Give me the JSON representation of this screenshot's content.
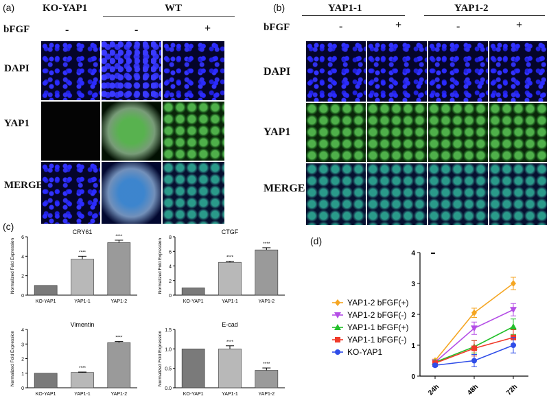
{
  "panel_a": {
    "label": "(a)",
    "col_headers": {
      "ko": "KO-YAP1",
      "wt": "WT"
    },
    "bfgf_label": "bFGF",
    "bfgf_values": [
      "-",
      "-",
      "+"
    ],
    "row_labels": [
      "DAPI",
      "YAP1",
      "MERGE"
    ]
  },
  "panel_b": {
    "label": "(b)",
    "col_headers": [
      "YAP1-1",
      "YAP1-2"
    ],
    "bfgf_label": "bFGF",
    "bfgf_values": [
      "-",
      "+",
      "-",
      "+"
    ],
    "row_labels": [
      "DAPI",
      "YAP1",
      "MERGE"
    ]
  },
  "panel_c": {
    "label": "(c)"
  },
  "panel_d": {
    "label": "(d)"
  },
  "chart_data": [
    {
      "type": "bar",
      "title": "CRY61",
      "ylabel": "Normalized Fold  Expression",
      "categories": [
        "KO-YAP1",
        "YAP1-1",
        "YAP1-2"
      ],
      "values": [
        1.0,
        3.7,
        5.4
      ],
      "errors": [
        0,
        0.3,
        0.25
      ],
      "significance": [
        "",
        "****",
        "****"
      ],
      "ylim": [
        0,
        6
      ],
      "yticks": [
        "0",
        "2",
        "4",
        "6"
      ]
    },
    {
      "type": "bar",
      "title": "CTGF",
      "ylabel": "Normalized Fold  Expression",
      "categories": [
        "KO-YAP1",
        "YAP1-1",
        "YAP1-2"
      ],
      "values": [
        1.0,
        4.5,
        6.2
      ],
      "errors": [
        0,
        0.15,
        0.3
      ],
      "significance": [
        "",
        "****",
        "****"
      ],
      "ylim": [
        0,
        8
      ],
      "yticks": [
        "0",
        "2",
        "4",
        "6",
        "8"
      ]
    },
    {
      "type": "bar",
      "title": "Vimentin",
      "ylabel": "Normalized Fold  Expression",
      "categories": [
        "KO-YAP1",
        "YAP1-1",
        "YAP1-2"
      ],
      "values": [
        1.0,
        1.05,
        3.1
      ],
      "errors": [
        0,
        0.03,
        0.07
      ],
      "significance": [
        "",
        "****",
        "****"
      ],
      "ylim": [
        0,
        4
      ],
      "yticks": [
        "0",
        "1",
        "2",
        "3",
        "4"
      ]
    },
    {
      "type": "bar",
      "title": "E-cad",
      "ylabel": "Normalized Fold  Expression",
      "categories": [
        "KO-YAP1",
        "YAP1-1",
        "YAP1-2"
      ],
      "values": [
        1.0,
        1.0,
        0.45
      ],
      "errors": [
        0,
        0.08,
        0.06
      ],
      "significance": [
        "",
        "****",
        "****"
      ],
      "ylim": [
        0,
        1.5
      ],
      "yticks": [
        "0.0",
        "0.5",
        "1.0",
        "1.5"
      ]
    },
    {
      "type": "line",
      "categories": [
        "24h",
        "48h",
        "72h"
      ],
      "ylim": [
        0,
        4
      ],
      "yticks": [
        "0",
        "1",
        "2",
        "3",
        "4"
      ],
      "series": [
        {
          "name": "YAP1-2 bFGF(+)",
          "color": "#f5a623",
          "marker": "diamond",
          "values": [
            0.5,
            2.05,
            3.0
          ],
          "errors": [
            0.05,
            0.15,
            0.2
          ]
        },
        {
          "name": "YAP1-2 bFGF(-)",
          "color": "#b44ee6",
          "marker": "triangle-down",
          "values": [
            0.45,
            1.55,
            2.15
          ],
          "errors": [
            0.05,
            0.2,
            0.2
          ]
        },
        {
          "name": "YAP1-1 bFGF(+)",
          "color": "#22c02a",
          "marker": "triangle-up",
          "values": [
            0.45,
            0.95,
            1.6
          ],
          "errors": [
            0.05,
            0.2,
            0.25
          ]
        },
        {
          "name": "YAP1-1 bFGF(-)",
          "color": "#f03a2a",
          "marker": "square",
          "values": [
            0.42,
            0.9,
            1.25
          ],
          "errors": [
            0.05,
            0.25,
            0.25
          ]
        },
        {
          "name": "KO-YAP1",
          "color": "#2f4de8",
          "marker": "circle",
          "values": [
            0.35,
            0.5,
            1.0
          ],
          "errors": [
            0.05,
            0.2,
            0.25
          ]
        }
      ]
    }
  ]
}
